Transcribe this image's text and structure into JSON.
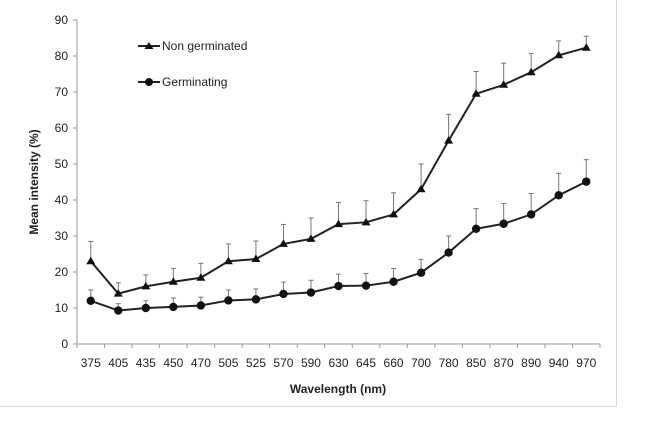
{
  "chart_data": {
    "type": "line",
    "title": "",
    "xlabel": "Wavelength (nm)",
    "ylabel": "Mean intensity (%)",
    "ylim": [
      0,
      90
    ],
    "yticks": [
      0,
      10,
      20,
      30,
      40,
      50,
      60,
      70,
      80,
      90
    ],
    "grid": false,
    "legend_position": "top-left",
    "categories": [
      "375",
      "405",
      "435",
      "450",
      "470",
      "505",
      "525",
      "570",
      "590",
      "630",
      "645",
      "660",
      "700",
      "780",
      "850",
      "870",
      "890",
      "940",
      "970"
    ],
    "series": [
      {
        "name": "Non germinated",
        "marker": "triangle",
        "values": [
          23,
          14,
          16,
          17.3,
          18.4,
          23,
          23.6,
          27.8,
          29.2,
          33.3,
          33.8,
          36,
          43,
          56.5,
          69.5,
          72,
          75.5,
          80.2,
          82.3
        ],
        "error": [
          5.5,
          3,
          3.2,
          3.7,
          4,
          4.8,
          5,
          5.4,
          5.8,
          6,
          6,
          6,
          7,
          7.3,
          6.2,
          6,
          5.2,
          4,
          3.2
        ]
      },
      {
        "name": "Germinating",
        "marker": "circle",
        "values": [
          12,
          9.3,
          10,
          10.3,
          10.7,
          12.1,
          12.4,
          13.9,
          14.3,
          16.1,
          16.2,
          17.3,
          19.8,
          25.4,
          32,
          33.4,
          36,
          41.3,
          45.1
        ],
        "error": [
          3,
          1.9,
          2,
          2.5,
          2.3,
          2.9,
          2.9,
          3.3,
          3.4,
          3.3,
          3.4,
          3.7,
          3.7,
          4.6,
          5.6,
          5.6,
          5.8,
          6.1,
          6.1
        ]
      }
    ]
  }
}
